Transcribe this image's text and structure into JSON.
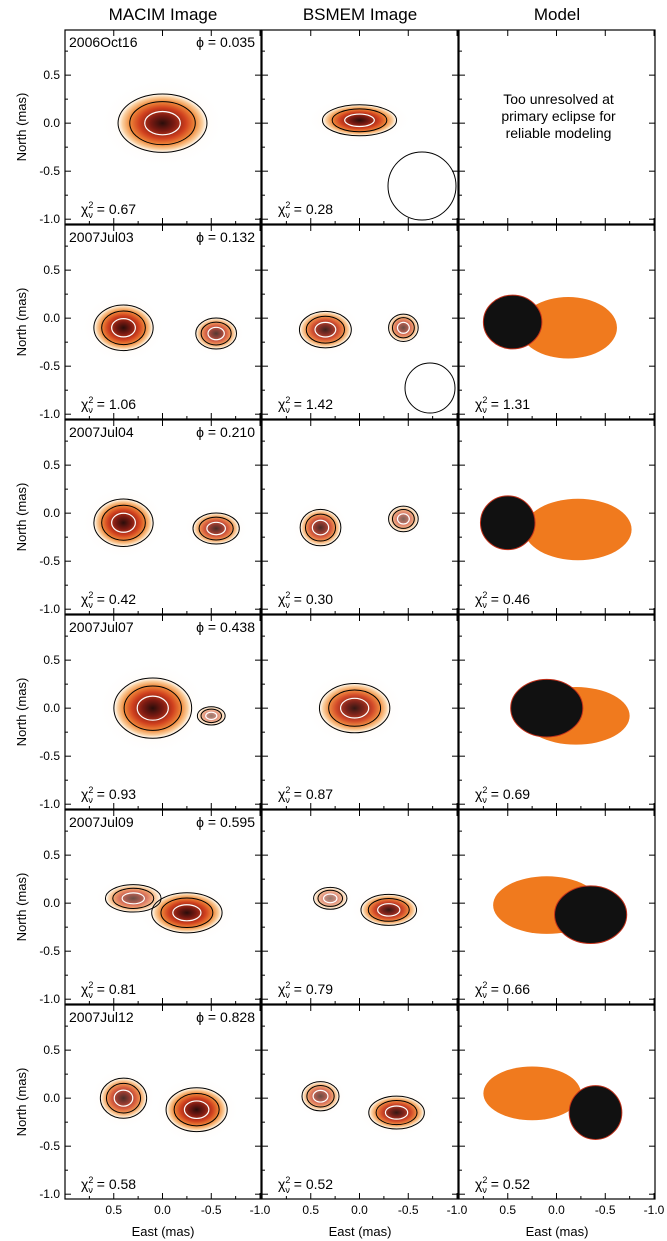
{
  "figure": {
    "column_titles": [
      "MACIM Image",
      "BSMEM Image",
      "Model"
    ],
    "y_axis_label": "North (mas)",
    "x_axis_label": "East (mas)",
    "y_tick_labels": [
      "0.5",
      "0.0",
      "-0.5",
      "-1.0"
    ],
    "x_tick_labels": [
      "0.5",
      "0.0",
      "-0.5",
      "-1.0"
    ],
    "model_note_lines": [
      "Too unresolved at",
      "primary eclipse for",
      "reliable modeling"
    ],
    "colors": {
      "primary": "#111111",
      "secondary": "#f07a1e",
      "halo": "#fbe3c8",
      "contour": "#000000",
      "inner_contour": "#ffffff"
    },
    "rows": [
      {
        "epoch": "2006Oct16",
        "phase": "ϕ = 0.035",
        "macim_chi2": "0.67",
        "bsmem_chi2": "0.28",
        "model_chi2": "",
        "macim": {
          "blobs": [
            [
              0.0,
              0.0,
              0.48,
              0.32,
              1.0
            ]
          ]
        },
        "bsmem": {
          "blobs": [
            [
              0.0,
              0.03,
              0.4,
              0.17,
              1.0
            ]
          ]
        },
        "model": null
      },
      {
        "epoch": "2007Jul03",
        "phase": "ϕ = 0.132",
        "macim_chi2": "1.06",
        "bsmem_chi2": "1.42",
        "model_chi2": "1.31",
        "macim": {
          "blobs": [
            [
              0.4,
              -0.1,
              0.32,
              0.25,
              1.0
            ],
            [
              -0.55,
              -0.16,
              0.22,
              0.17,
              0.8
            ]
          ]
        },
        "bsmem": {
          "blobs": [
            [
              0.35,
              -0.12,
              0.28,
              0.2,
              0.9
            ],
            [
              -0.45,
              -0.1,
              0.16,
              0.15,
              0.7
            ]
          ]
        },
        "model": {
          "primary": [
            0.45,
            -0.04,
            0.3,
            0.28
          ],
          "secondary": [
            -0.12,
            -0.1,
            0.5,
            0.32
          ]
        }
      },
      {
        "epoch": "2007Jul04",
        "phase": "ϕ = 0.210",
        "macim_chi2": "0.42",
        "bsmem_chi2": "0.30",
        "model_chi2": "0.46",
        "macim": {
          "blobs": [
            [
              0.4,
              -0.1,
              0.32,
              0.26,
              1.0
            ],
            [
              -0.55,
              -0.16,
              0.25,
              0.17,
              0.85
            ]
          ]
        },
        "bsmem": {
          "blobs": [
            [
              0.4,
              -0.15,
              0.22,
              0.2,
              0.85
            ],
            [
              -0.45,
              -0.06,
              0.16,
              0.14,
              0.6
            ]
          ]
        },
        "model": {
          "primary": [
            0.5,
            -0.1,
            0.28,
            0.28
          ],
          "secondary": [
            -0.22,
            -0.17,
            0.55,
            0.32
          ]
        }
      },
      {
        "epoch": "2007Jul07",
        "phase": "ϕ = 0.438",
        "macim_chi2": "0.93",
        "bsmem_chi2": "0.87",
        "model_chi2": "0.69",
        "macim": {
          "blobs": [
            [
              0.1,
              0.0,
              0.42,
              0.33,
              1.0
            ],
            [
              -0.5,
              -0.08,
              0.15,
              0.1,
              0.5
            ]
          ]
        },
        "bsmem": {
          "blobs": [
            [
              0.05,
              0.0,
              0.38,
              0.27,
              0.95
            ]
          ]
        },
        "model": {
          "primary": [
            0.1,
            0.0,
            0.37,
            0.3
          ],
          "secondary": [
            -0.2,
            -0.08,
            0.55,
            0.3
          ]
        }
      },
      {
        "epoch": "2007Jul09",
        "phase": "ϕ = 0.595",
        "macim_chi2": "0.81",
        "bsmem_chi2": "0.79",
        "model_chi2": "0.66",
        "macim": {
          "blobs": [
            [
              0.3,
              0.05,
              0.3,
              0.15,
              0.7
            ],
            [
              -0.25,
              -0.1,
              0.38,
              0.22,
              1.0
            ]
          ]
        },
        "bsmem": {
          "blobs": [
            [
              0.3,
              0.05,
              0.18,
              0.12,
              0.5
            ],
            [
              -0.3,
              -0.07,
              0.3,
              0.17,
              0.95
            ]
          ]
        },
        "model": {
          "primary": [
            -0.35,
            -0.12,
            0.37,
            0.3
          ],
          "secondary": [
            0.1,
            -0.02,
            0.55,
            0.3
          ]
        }
      },
      {
        "epoch": "2007Jul12",
        "phase": "ϕ = 0.828",
        "macim_chi2": "0.58",
        "bsmem_chi2": "0.52",
        "model_chi2": "0.52",
        "macim": {
          "blobs": [
            [
              0.4,
              0.0,
              0.25,
              0.22,
              0.85
            ],
            [
              -0.35,
              -0.12,
              0.33,
              0.24,
              1.0
            ]
          ]
        },
        "bsmem": {
          "blobs": [
            [
              0.4,
              0.02,
              0.2,
              0.16,
              0.7
            ],
            [
              -0.38,
              -0.15,
              0.3,
              0.18,
              0.95
            ]
          ]
        },
        "model": {
          "primary": [
            -0.4,
            -0.15,
            0.27,
            0.28
          ],
          "secondary": [
            0.25,
            0.05,
            0.5,
            0.28
          ]
        }
      }
    ]
  }
}
